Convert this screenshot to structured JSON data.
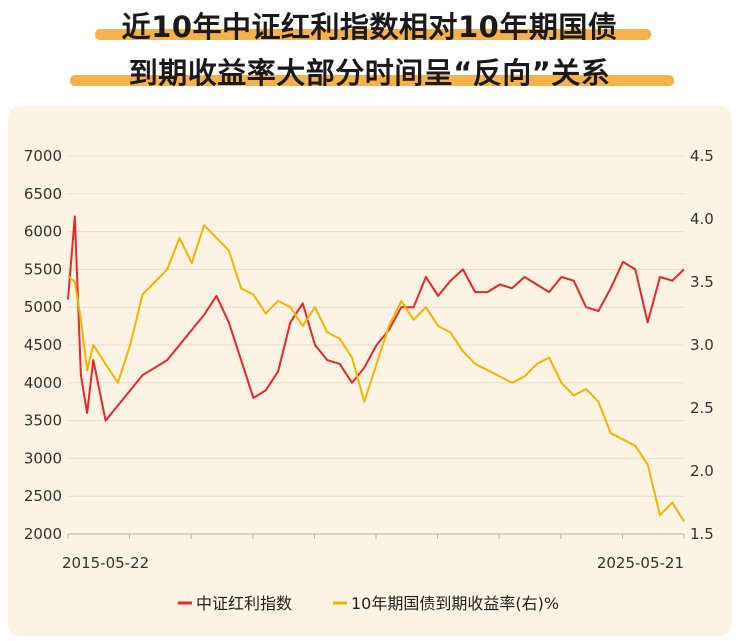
{
  "title": {
    "line1": "近10年中证红利指数相对10年期国债",
    "line2": "到期收益率大部分时间呈“反向”关系"
  },
  "colors": {
    "highlight": "#f5b14a",
    "panel": "#fdf3e4",
    "red": "#e8282b",
    "yellow": "#f5b400"
  },
  "chart_data": {
    "type": "line",
    "title": "近10年中证红利指数相对10年期国债到期收益率大部分时间呈“反向”关系",
    "x_tick_labels": [
      "2015-05-22",
      "2025-05-21"
    ],
    "x": [
      2015.39,
      2015.5,
      2015.6,
      2015.7,
      2015.8,
      2016.0,
      2016.2,
      2016.4,
      2016.6,
      2016.8,
      2017.0,
      2017.2,
      2017.4,
      2017.6,
      2017.8,
      2018.0,
      2018.2,
      2018.4,
      2018.6,
      2018.8,
      2019.0,
      2019.2,
      2019.4,
      2019.6,
      2019.8,
      2020.0,
      2020.2,
      2020.4,
      2020.6,
      2020.8,
      2021.0,
      2021.2,
      2021.4,
      2021.6,
      2021.8,
      2022.0,
      2022.2,
      2022.4,
      2022.6,
      2022.8,
      2023.0,
      2023.2,
      2023.4,
      2023.6,
      2023.8,
      2024.0,
      2024.2,
      2024.4,
      2024.6,
      2024.8,
      2025.0,
      2025.2,
      2025.39
    ],
    "y_left": {
      "ylim": [
        2000,
        7000
      ],
      "ticks": [
        "7000",
        "6500",
        "6000",
        "5500",
        "5000",
        "4500",
        "4000",
        "3500",
        "3000",
        "2500",
        "2000"
      ]
    },
    "y_right": {
      "ylim": [
        1.5,
        4.5
      ],
      "ticks": [
        "4.5",
        "4.0",
        "3.5",
        "3.0",
        "2.5",
        "2.0",
        "1.5"
      ]
    },
    "series": [
      {
        "name": "中证红利指数",
        "axis": "left",
        "color": "#e8282b",
        "values": [
          5100,
          6200,
          4100,
          3600,
          4300,
          3500,
          3700,
          3900,
          4100,
          4200,
          4300,
          4500,
          4700,
          4900,
          5150,
          4800,
          4300,
          3800,
          3900,
          4150,
          4800,
          5050,
          4500,
          4300,
          4250,
          4000,
          4200,
          4500,
          4700,
          5000,
          5000,
          5400,
          5150,
          5350,
          5500,
          5200,
          5200,
          5300,
          5250,
          5400,
          5300,
          5200,
          5400,
          5350,
          5000,
          4950,
          5250,
          5600,
          5500,
          4800,
          5400,
          5350,
          5500
        ]
      },
      {
        "name": "10年期国债到期收益率(右)%",
        "axis": "right",
        "color": "#f5b400",
        "values": [
          3.55,
          3.5,
          3.2,
          2.8,
          3.0,
          2.85,
          2.7,
          3.0,
          3.4,
          3.5,
          3.6,
          3.85,
          3.65,
          3.95,
          3.85,
          3.75,
          3.45,
          3.4,
          3.25,
          3.35,
          3.3,
          3.15,
          3.3,
          3.1,
          3.05,
          2.9,
          2.55,
          2.85,
          3.15,
          3.35,
          3.2,
          3.3,
          3.15,
          3.1,
          2.95,
          2.85,
          2.8,
          2.75,
          2.7,
          2.75,
          2.85,
          2.9,
          2.7,
          2.6,
          2.65,
          2.55,
          2.3,
          2.25,
          2.2,
          2.05,
          1.65,
          1.75,
          1.6
        ]
      }
    ],
    "legend_position": "bottom-center",
    "grid": "horizontal"
  }
}
